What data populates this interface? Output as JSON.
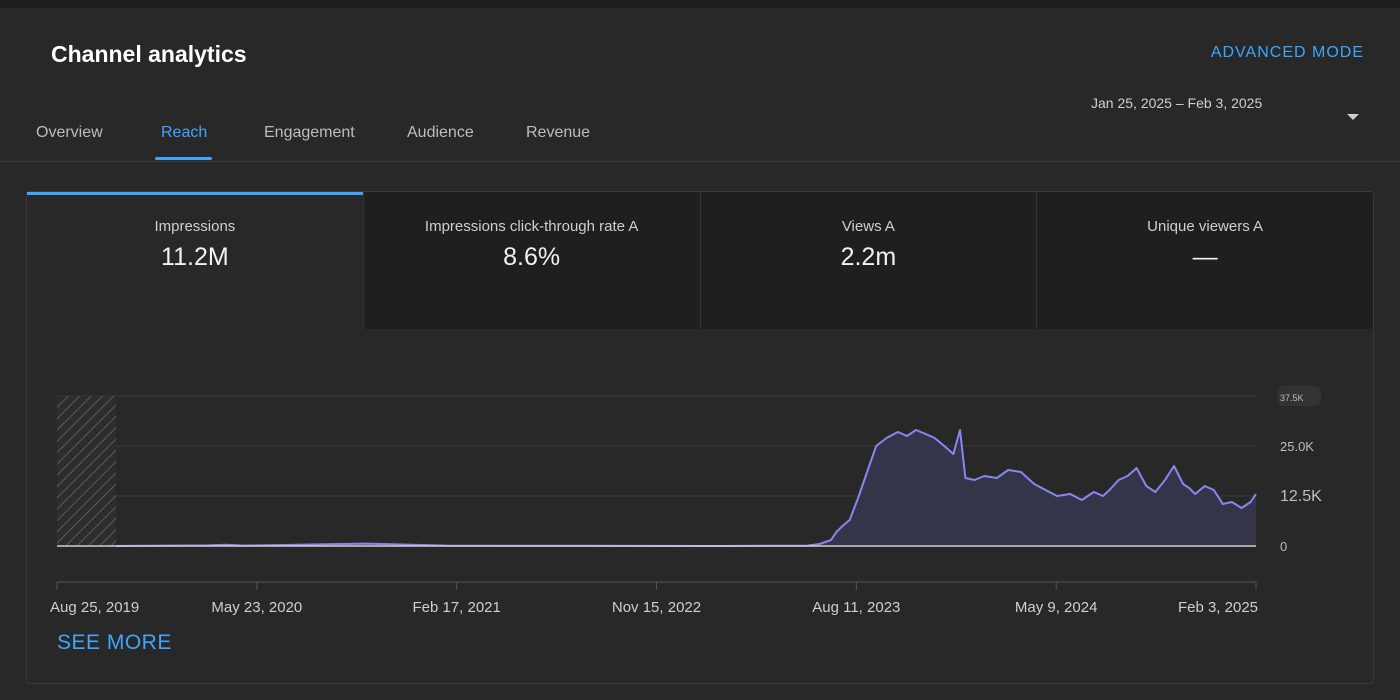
{
  "header": {
    "title": "Channel analytics",
    "advanced_mode": "ADVANCED MODE",
    "date_range": "Jan 25, 2025 – Feb 3, 2025"
  },
  "tabs": [
    {
      "label": "Overview"
    },
    {
      "label": "Reach"
    },
    {
      "label": "Engagement"
    },
    {
      "label": "Audience"
    },
    {
      "label": "Revenue"
    }
  ],
  "active_tab": "Reach",
  "metrics": [
    {
      "label": "Impressions",
      "value": "11.2M"
    },
    {
      "label": "Impressions click-through rate A",
      "value": "8.6%"
    },
    {
      "label": "Views A",
      "value": "2.2m"
    },
    {
      "label": "Unique viewers A",
      "value": "—"
    }
  ],
  "colors": {
    "accent": "#3ea6ff",
    "line": "#8a86f0",
    "area": "#34344a"
  },
  "see_more": "SEE MORE",
  "chart_data": {
    "type": "area",
    "ylim": [
      0,
      37500
    ],
    "y_ticks": [
      "0",
      "12.5K",
      "25.0K",
      "37.5K"
    ],
    "x_ticks": [
      "Aug 25, 2019",
      "May 23, 2020",
      "Feb 17, 2021",
      "Nov 15, 2022",
      "Aug 11, 2023",
      "May 9, 2024",
      "Feb 3, 2025"
    ],
    "no_data_before": "2019-12-01",
    "x": [
      "2019-08-25",
      "2019-12-01",
      "2020-05-01",
      "2020-06-01",
      "2020-07-01",
      "2021-01-15",
      "2021-06-01",
      "2022-01-01",
      "2022-09-01",
      "2023-01-20",
      "2023-02-10",
      "2023-03-01",
      "2023-03-10",
      "2023-03-20",
      "2023-04-01",
      "2023-04-15",
      "2023-05-01",
      "2023-05-15",
      "2023-06-01",
      "2023-06-20",
      "2023-07-05",
      "2023-07-20",
      "2023-08-05",
      "2023-08-20",
      "2023-09-05",
      "2023-09-20",
      "2023-10-01",
      "2023-10-10",
      "2023-10-25",
      "2023-11-10",
      "2023-12-01",
      "2023-12-20",
      "2024-01-10",
      "2024-02-01",
      "2024-02-20",
      "2024-03-10",
      "2024-04-01",
      "2024-04-20",
      "2024-05-10",
      "2024-05-25",
      "2024-06-05",
      "2024-06-20",
      "2024-07-05",
      "2024-07-20",
      "2024-08-05",
      "2024-08-20",
      "2024-09-05",
      "2024-09-20",
      "2024-10-05",
      "2024-10-15",
      "2024-10-25",
      "2024-11-10",
      "2024-11-25",
      "2024-12-10",
      "2024-12-25",
      "2025-01-10",
      "2025-01-25",
      "2025-02-03"
    ],
    "y": [
      0,
      0,
      150,
      300,
      100,
      600,
      100,
      50,
      0,
      100,
      500,
      1500,
      3500,
      5000,
      6500,
      12000,
      19000,
      25000,
      27000,
      28500,
      27500,
      29000,
      28000,
      27000,
      25000,
      23000,
      29000,
      17000,
      16500,
      17500,
      17000,
      19000,
      18500,
      15500,
      14000,
      12500,
      13000,
      11500,
      13500,
      12500,
      14000,
      16500,
      17500,
      19500,
      15000,
      13500,
      16500,
      20000,
      15500,
      14500,
      13000,
      15000,
      14000,
      10500,
      11000,
      9500,
      11000,
      13000
    ]
  }
}
